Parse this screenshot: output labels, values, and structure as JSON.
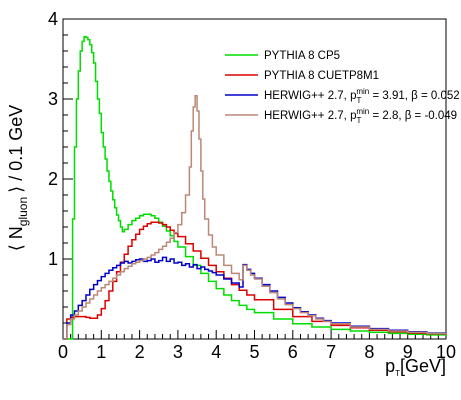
{
  "chart_data": {
    "type": "line",
    "style": "step-histogram",
    "xlabel_main": "p",
    "xlabel_sub": "T",
    "xlabel_unit": "[GeV]",
    "ylabel_pre": "⟨ N",
    "ylabel_sub": "gluon",
    "ylabel_post": "⟩ / 0.1 GeV",
    "xlim": [
      0,
      10
    ],
    "ylim": [
      0,
      4
    ],
    "x_ticks": [
      0,
      1,
      2,
      3,
      4,
      5,
      6,
      7,
      8,
      9,
      10
    ],
    "y_ticks": [
      1,
      2,
      3,
      4
    ],
    "grid": false,
    "legend_position": "top-right",
    "series": [
      {
        "name": "PYTHIA 8 CP5",
        "color": "#00dd00",
        "points": [
          [
            0,
            0
          ],
          [
            0.2,
            0
          ],
          [
            0.25,
            1.5
          ],
          [
            0.3,
            2.4
          ],
          [
            0.35,
            3.0
          ],
          [
            0.4,
            3.35
          ],
          [
            0.45,
            3.6
          ],
          [
            0.5,
            3.72
          ],
          [
            0.55,
            3.78
          ],
          [
            0.6,
            3.77
          ],
          [
            0.65,
            3.74
          ],
          [
            0.7,
            3.68
          ],
          [
            0.75,
            3.58
          ],
          [
            0.8,
            3.45
          ],
          [
            0.85,
            3.22
          ],
          [
            0.9,
            3.0
          ],
          [
            0.95,
            2.82
          ],
          [
            1.0,
            2.58
          ],
          [
            1.05,
            2.4
          ],
          [
            1.1,
            2.25
          ],
          [
            1.15,
            2.1
          ],
          [
            1.2,
            1.97
          ],
          [
            1.25,
            1.85
          ],
          [
            1.3,
            1.74
          ],
          [
            1.35,
            1.64
          ],
          [
            1.4,
            1.55
          ],
          [
            1.45,
            1.48
          ],
          [
            1.5,
            1.4
          ],
          [
            1.55,
            1.34
          ],
          [
            1.6,
            1.37
          ],
          [
            1.7,
            1.43
          ],
          [
            1.8,
            1.48
          ],
          [
            1.9,
            1.51
          ],
          [
            2.0,
            1.54
          ],
          [
            2.1,
            1.56
          ],
          [
            2.2,
            1.56
          ],
          [
            2.3,
            1.54
          ],
          [
            2.4,
            1.51
          ],
          [
            2.5,
            1.46
          ],
          [
            2.6,
            1.41
          ],
          [
            2.7,
            1.35
          ],
          [
            2.8,
            1.29
          ],
          [
            2.9,
            1.22
          ],
          [
            3.0,
            1.15
          ],
          [
            3.2,
            1.03
          ],
          [
            3.4,
            0.92
          ],
          [
            3.6,
            0.82
          ],
          [
            3.8,
            0.72
          ],
          [
            4.0,
            0.63
          ],
          [
            4.2,
            0.55
          ],
          [
            4.4,
            0.48
          ],
          [
            4.6,
            0.42
          ],
          [
            4.8,
            0.37
          ],
          [
            5.0,
            0.33
          ],
          [
            5.5,
            0.25
          ],
          [
            6.0,
            0.19
          ],
          [
            6.5,
            0.15
          ],
          [
            7.0,
            0.12
          ],
          [
            7.5,
            0.1
          ],
          [
            8.0,
            0.085
          ],
          [
            8.5,
            0.07
          ],
          [
            9.0,
            0.06
          ],
          [
            9.5,
            0.052
          ],
          [
            10.0,
            0.045
          ]
        ]
      },
      {
        "name": "PYTHIA 8 CUETP8M1",
        "color": "#dd0000",
        "points": [
          [
            0,
            0
          ],
          [
            0.1,
            0.25
          ],
          [
            0.2,
            0.27
          ],
          [
            0.3,
            0.28
          ],
          [
            0.4,
            0.28
          ],
          [
            0.5,
            0.28
          ],
          [
            0.6,
            0.27
          ],
          [
            0.7,
            0.26
          ],
          [
            0.8,
            0.26
          ],
          [
            0.9,
            0.3
          ],
          [
            1.0,
            0.38
          ],
          [
            1.1,
            0.48
          ],
          [
            1.2,
            0.6
          ],
          [
            1.3,
            0.72
          ],
          [
            1.4,
            0.84
          ],
          [
            1.5,
            0.96
          ],
          [
            1.6,
            1.06
          ],
          [
            1.7,
            1.16
          ],
          [
            1.8,
            1.24
          ],
          [
            1.9,
            1.31
          ],
          [
            2.0,
            1.37
          ],
          [
            2.1,
            1.41
          ],
          [
            2.2,
            1.44
          ],
          [
            2.3,
            1.46
          ],
          [
            2.4,
            1.46
          ],
          [
            2.5,
            1.45
          ],
          [
            2.6,
            1.43
          ],
          [
            2.7,
            1.4
          ],
          [
            2.8,
            1.36
          ],
          [
            2.9,
            1.32
          ],
          [
            3.0,
            1.28
          ],
          [
            3.2,
            1.19
          ],
          [
            3.4,
            1.1
          ],
          [
            3.6,
            1.01
          ],
          [
            3.8,
            0.92
          ],
          [
            4.0,
            0.84
          ],
          [
            4.2,
            0.76
          ],
          [
            4.4,
            0.68
          ],
          [
            4.6,
            0.61
          ],
          [
            4.8,
            0.55
          ],
          [
            5.0,
            0.49
          ],
          [
            5.5,
            0.37
          ],
          [
            6.0,
            0.28
          ],
          [
            6.5,
            0.22
          ],
          [
            7.0,
            0.17
          ],
          [
            7.5,
            0.14
          ],
          [
            8.0,
            0.11
          ],
          [
            8.5,
            0.09
          ],
          [
            9.0,
            0.075
          ],
          [
            9.5,
            0.065
          ],
          [
            10.0,
            0.055
          ]
        ]
      },
      {
        "name": "HERWIG++ 2.7, p_T^min = 3.91, β = 0.052",
        "color": "#0000cc",
        "points": [
          [
            0,
            0
          ],
          [
            0.1,
            0.2
          ],
          [
            0.2,
            0.3
          ],
          [
            0.3,
            0.35
          ],
          [
            0.4,
            0.42
          ],
          [
            0.5,
            0.48
          ],
          [
            0.6,
            0.55
          ],
          [
            0.7,
            0.62
          ],
          [
            0.8,
            0.68
          ],
          [
            0.9,
            0.73
          ],
          [
            1.0,
            0.78
          ],
          [
            1.1,
            0.82
          ],
          [
            1.2,
            0.86
          ],
          [
            1.3,
            0.89
          ],
          [
            1.4,
            0.92
          ],
          [
            1.5,
            0.95
          ],
          [
            1.6,
            0.97
          ],
          [
            1.7,
            0.95
          ],
          [
            1.8,
            0.97
          ],
          [
            1.9,
            0.99
          ],
          [
            2.0,
            1.0
          ],
          [
            2.1,
            0.97
          ],
          [
            2.2,
            0.98
          ],
          [
            2.3,
            1.0
          ],
          [
            2.4,
            0.96
          ],
          [
            2.5,
            0.98
          ],
          [
            2.6,
            1.02
          ],
          [
            2.7,
            0.97
          ],
          [
            2.8,
            1.0
          ],
          [
            2.9,
            0.95
          ],
          [
            3.0,
            0.96
          ],
          [
            3.1,
            0.92
          ],
          [
            3.2,
            0.94
          ],
          [
            3.3,
            0.9
          ],
          [
            3.4,
            0.93
          ],
          [
            3.5,
            0.88
          ],
          [
            3.6,
            0.9
          ],
          [
            3.7,
            0.87
          ],
          [
            3.8,
            0.85
          ],
          [
            3.9,
            0.83
          ],
          [
            4.0,
            0.8
          ],
          [
            4.2,
            0.75
          ],
          [
            4.4,
            0.7
          ],
          [
            4.6,
            0.65
          ],
          [
            4.7,
            0.93
          ],
          [
            4.8,
            0.87
          ],
          [
            4.9,
            0.82
          ],
          [
            5.0,
            0.76
          ],
          [
            5.2,
            0.68
          ],
          [
            5.4,
            0.6
          ],
          [
            5.6,
            0.52
          ],
          [
            5.8,
            0.45
          ],
          [
            6.0,
            0.39
          ],
          [
            6.2,
            0.34
          ],
          [
            6.4,
            0.3
          ],
          [
            6.6,
            0.26
          ],
          [
            6.8,
            0.23
          ],
          [
            7.0,
            0.2
          ],
          [
            7.5,
            0.16
          ],
          [
            8.0,
            0.13
          ],
          [
            8.5,
            0.11
          ],
          [
            9.0,
            0.09
          ],
          [
            9.5,
            0.075
          ],
          [
            10.0,
            0.065
          ]
        ]
      },
      {
        "name": "HERWIG++ 2.7, p_T^min = 2.8, β = -0.049",
        "color": "#bb8877",
        "points": [
          [
            0,
            0
          ],
          [
            0.1,
            0.18
          ],
          [
            0.2,
            0.25
          ],
          [
            0.3,
            0.3
          ],
          [
            0.4,
            0.35
          ],
          [
            0.5,
            0.4
          ],
          [
            0.6,
            0.45
          ],
          [
            0.7,
            0.5
          ],
          [
            0.8,
            0.55
          ],
          [
            0.9,
            0.6
          ],
          [
            1.0,
            0.64
          ],
          [
            1.1,
            0.68
          ],
          [
            1.2,
            0.72
          ],
          [
            1.3,
            0.76
          ],
          [
            1.4,
            0.8
          ],
          [
            1.5,
            0.84
          ],
          [
            1.6,
            0.88
          ],
          [
            1.7,
            0.91
          ],
          [
            1.8,
            0.94
          ],
          [
            1.9,
            0.96
          ],
          [
            2.0,
            0.98
          ],
          [
            2.1,
            1.0
          ],
          [
            2.2,
            1.02
          ],
          [
            2.3,
            1.05
          ],
          [
            2.4,
            1.08
          ],
          [
            2.5,
            1.12
          ],
          [
            2.6,
            1.16
          ],
          [
            2.7,
            1.21
          ],
          [
            2.8,
            1.26
          ],
          [
            2.9,
            1.33
          ],
          [
            3.0,
            1.43
          ],
          [
            3.1,
            1.58
          ],
          [
            3.2,
            1.8
          ],
          [
            3.3,
            2.15
          ],
          [
            3.35,
            2.6
          ],
          [
            3.4,
            2.9
          ],
          [
            3.45,
            3.04
          ],
          [
            3.5,
            2.85
          ],
          [
            3.55,
            2.5
          ],
          [
            3.6,
            2.1
          ],
          [
            3.65,
            1.75
          ],
          [
            3.7,
            1.5
          ],
          [
            3.8,
            1.3
          ],
          [
            3.9,
            1.15
          ],
          [
            4.0,
            1.05
          ],
          [
            4.2,
            0.92
          ],
          [
            4.4,
            0.82
          ],
          [
            4.6,
            0.74
          ],
          [
            4.7,
            0.92
          ],
          [
            4.8,
            0.86
          ],
          [
            4.9,
            0.8
          ],
          [
            5.0,
            0.75
          ],
          [
            5.2,
            0.66
          ],
          [
            5.4,
            0.58
          ],
          [
            5.6,
            0.5
          ],
          [
            5.8,
            0.43
          ],
          [
            6.0,
            0.38
          ],
          [
            6.2,
            0.33
          ],
          [
            6.4,
            0.29
          ],
          [
            6.6,
            0.25
          ],
          [
            6.8,
            0.22
          ],
          [
            7.0,
            0.19
          ],
          [
            7.5,
            0.15
          ],
          [
            8.0,
            0.12
          ],
          [
            8.5,
            0.1
          ],
          [
            9.0,
            0.085
          ],
          [
            9.5,
            0.07
          ],
          [
            10.0,
            0.06
          ]
        ]
      }
    ]
  }
}
